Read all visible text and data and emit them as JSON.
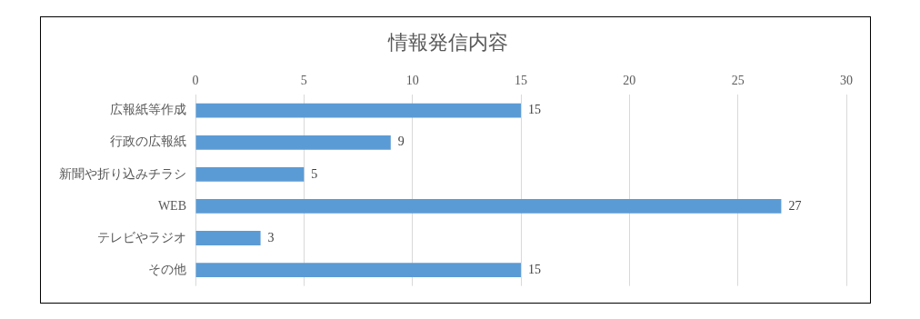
{
  "chart_data": {
    "type": "bar",
    "orientation": "horizontal",
    "title": "情報発信内容",
    "categories": [
      "広報紙等作成",
      "行政の広報紙",
      "新聞や折り込みチラシ",
      "WEB",
      "テレビやラジオ",
      "その他"
    ],
    "values": [
      15,
      9,
      5,
      27,
      3,
      15
    ],
    "color": "#5b9bd5",
    "xlim": [
      0,
      30
    ],
    "xticks": [
      0,
      5,
      10,
      15,
      20,
      25,
      30
    ],
    "grid": "x",
    "data_labels": true
  }
}
